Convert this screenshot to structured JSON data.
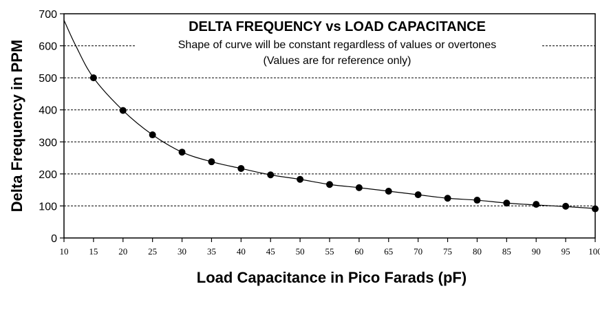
{
  "chart_data": {
    "type": "scatter",
    "title": "DELTA FREQUENCY vs LOAD CAPACITANCE",
    "subtitle_lines": [
      "Shape of curve will be constant regardless of values or overtones",
      "(Values are for reference only)"
    ],
    "xlabel": "Load Capacitance in Pico Farads (pF)",
    "ylabel": "Delta Frequency in PPM",
    "xlim": [
      10,
      100
    ],
    "ylim": [
      0,
      700
    ],
    "xticks": [
      10,
      15,
      20,
      25,
      30,
      35,
      40,
      45,
      50,
      55,
      60,
      65,
      70,
      75,
      80,
      85,
      90,
      95,
      100
    ],
    "yticks": [
      0,
      100,
      200,
      300,
      400,
      500,
      600,
      700
    ],
    "grid": "horizontal-dashed",
    "legend": "none",
    "series": [
      {
        "x": [
          15,
          20,
          25,
          30,
          35,
          40,
          45,
          50,
          55,
          60,
          65,
          70,
          75,
          80,
          85,
          90,
          95,
          100
        ],
        "y": [
          500,
          398,
          322,
          268,
          238,
          217,
          197,
          183,
          167,
          157,
          146,
          135,
          124,
          118,
          109,
          105,
          99,
          91
        ]
      }
    ],
    "curve": {
      "x": [
        10,
        12,
        15,
        20,
        25,
        30,
        35,
        40,
        45,
        50,
        55,
        60,
        65,
        70,
        75,
        80,
        85,
        90,
        95,
        100
      ],
      "y": [
        680,
        600,
        500,
        398,
        322,
        268,
        238,
        217,
        197,
        183,
        167,
        157,
        146,
        135,
        124,
        118,
        109,
        103,
        98,
        92
      ]
    },
    "colors": {
      "marker": "#000000",
      "line": "#000000",
      "grid": "#000000"
    }
  }
}
